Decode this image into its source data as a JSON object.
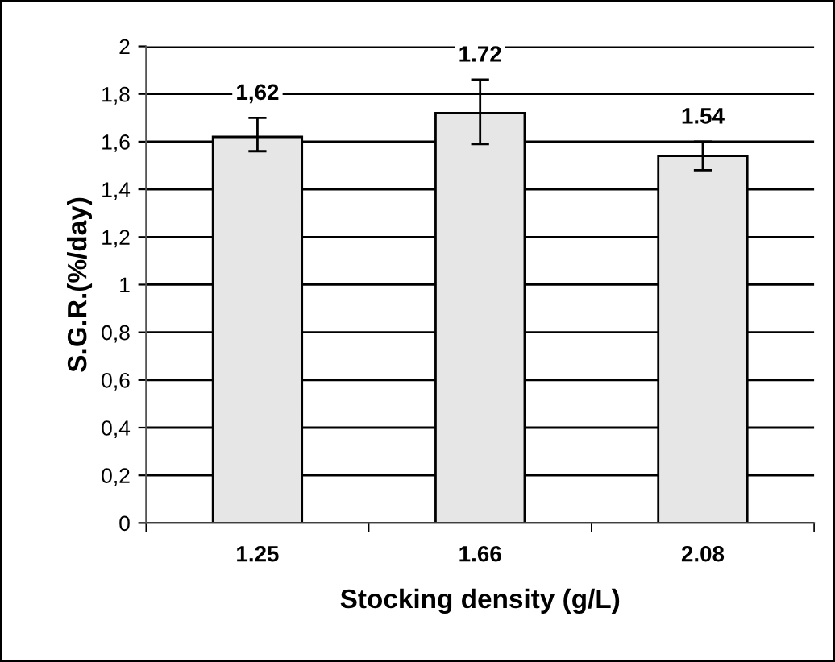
{
  "chart_data": {
    "type": "bar",
    "xlabel": "Stocking density (g/L)",
    "ylabel": "S.G.R.(%/day)",
    "categories": [
      "1.25",
      "1.66",
      "2.08"
    ],
    "values": [
      1.62,
      1.72,
      1.54
    ],
    "value_labels": [
      "1,62",
      "1.72",
      "1.54"
    ],
    "errors": [
      [
        1.56,
        1.7
      ],
      [
        1.59,
        1.86
      ],
      [
        1.48,
        1.6
      ]
    ],
    "color": "#e6e6e6",
    "ylim": [
      0,
      2
    ],
    "yticks": [
      0,
      {
        "value": 0.2,
        "label": "0,2"
      },
      {
        "value": 0.4,
        "label": "0,4"
      },
      {
        "value": 0.6,
        "label": "0,6"
      },
      {
        "value": 0.8,
        "label": "0,8"
      },
      1,
      {
        "value": 1.2,
        "label": "1,2"
      },
      {
        "value": 1.4,
        "label": "1,4"
      },
      {
        "value": 1.6,
        "label": "1,6"
      },
      {
        "value": 1.8,
        "label": "1,8"
      },
      2
    ],
    "grid": "y"
  }
}
